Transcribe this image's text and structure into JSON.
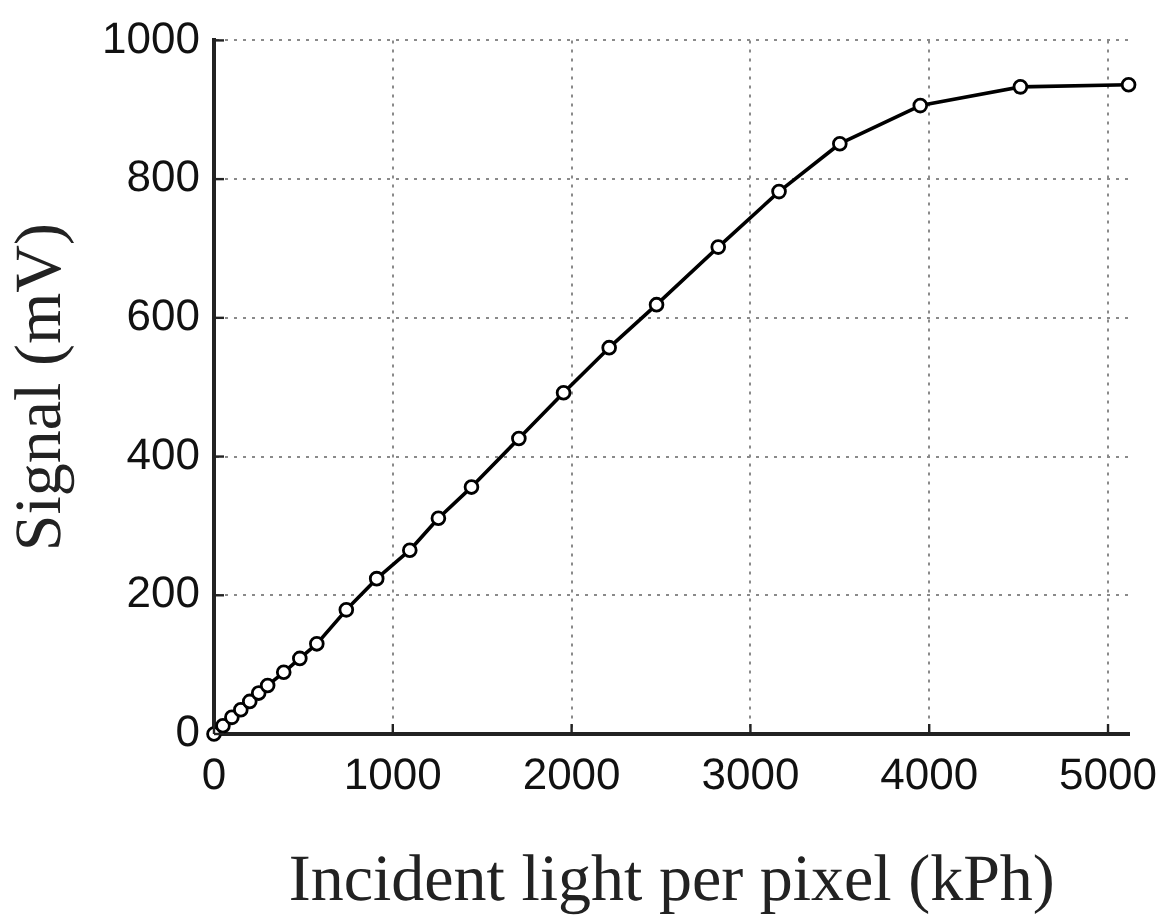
{
  "chart_data": {
    "type": "line",
    "xlabel": "Incident light per pixel (kPh)",
    "ylabel": "Signal (mV)",
    "x": [
      0,
      50,
      100,
      150,
      200,
      250,
      300,
      390,
      480,
      575,
      740,
      910,
      1095,
      1255,
      1440,
      1705,
      1955,
      2210,
      2475,
      2820,
      3160,
      3500,
      3950,
      4510,
      5115
    ],
    "values": [
      0,
      12,
      24,
      35,
      47,
      59,
      70,
      89,
      109,
      130,
      179,
      224,
      265,
      311,
      356,
      426,
      492,
      557,
      619,
      702,
      782,
      851,
      906,
      933,
      936
    ],
    "color": "#000000",
    "xlim": [
      0,
      5120
    ],
    "ylim": [
      0,
      1000
    ],
    "xticks": [
      0,
      1000,
      2000,
      3000,
      4000,
      5000
    ],
    "yticks": [
      0,
      200,
      400,
      600,
      800,
      1000
    ],
    "grid": true,
    "marker": "circle",
    "line_style": "solid"
  }
}
